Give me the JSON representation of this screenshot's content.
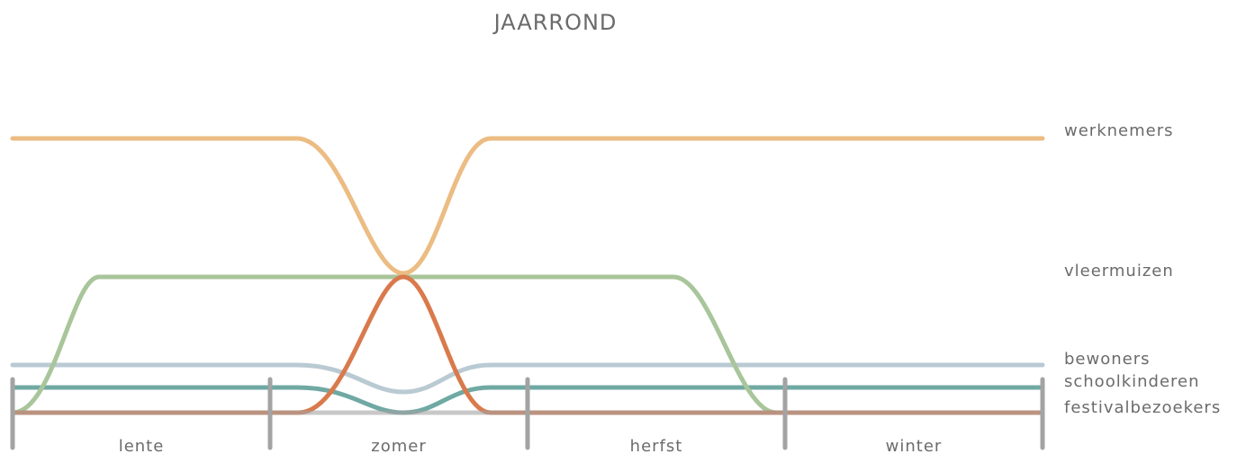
{
  "title": "JAARROND",
  "legend": [
    "werknemers",
    "vleermuizen",
    "bewoners",
    "schoolkinderen",
    "festivalbezoekers"
  ],
  "seasons": [
    "lente",
    "zomer",
    "herfst",
    "winter"
  ]
}
